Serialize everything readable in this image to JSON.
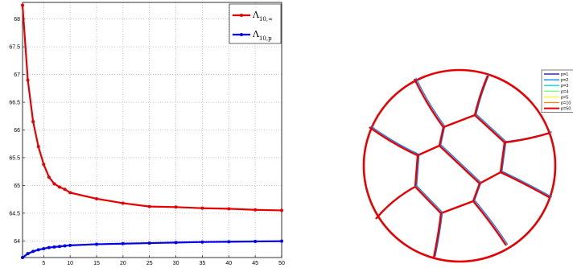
{
  "chart_data": [
    {
      "type": "line",
      "title": "",
      "xlabel": "",
      "ylabel": "",
      "xlim": [
        1,
        50
      ],
      "ylim": [
        63.7,
        68.3
      ],
      "grid": true,
      "legend_position": "top-right",
      "x_ticks": [
        "5",
        "10",
        "15",
        "20",
        "25",
        "30",
        "35",
        "40",
        "45",
        "50"
      ],
      "y_ticks": [
        "64",
        "64.5",
        "65",
        "65.5",
        "66",
        "66.5",
        "67",
        "67.5",
        "68"
      ],
      "series": [
        {
          "legend_base": "Λ",
          "legend_sub": "10,∞",
          "color": "#e60000",
          "x": [
            1,
            2,
            3,
            4,
            5,
            6,
            7,
            8,
            9,
            10,
            15,
            20,
            25,
            30,
            35,
            40,
            45,
            50
          ],
          "y": [
            68.25,
            66.9,
            66.15,
            65.7,
            65.38,
            65.15,
            65.03,
            64.97,
            64.93,
            64.87,
            64.76,
            64.68,
            64.62,
            64.61,
            64.59,
            64.58,
            64.56,
            64.55
          ]
        },
        {
          "legend_base": "Λ",
          "legend_sub": "10,p",
          "color": "#0000e6",
          "x": [
            1,
            2,
            3,
            4,
            5,
            6,
            7,
            8,
            9,
            10,
            15,
            20,
            25,
            30,
            35,
            40,
            45,
            50
          ],
          "y": [
            63.7,
            63.77,
            63.81,
            63.84,
            63.86,
            63.88,
            63.89,
            63.9,
            63.91,
            63.92,
            63.94,
            63.95,
            63.96,
            63.97,
            63.98,
            63.985,
            63.99,
            63.995
          ]
        }
      ]
    },
    {
      "type": "diagram",
      "title": "",
      "legend_position": "top-right",
      "legend": [
        {
          "label": "p=1",
          "color": "#0000c8"
        },
        {
          "label": "p=2",
          "color": "#0078ff"
        },
        {
          "label": "p=3",
          "color": "#00dcdc"
        },
        {
          "label": "p=4",
          "color": "#7fff7f"
        },
        {
          "label": "p=5",
          "color": "#ffff00"
        },
        {
          "label": "p=10",
          "color": "#ff8000"
        },
        {
          "label": "p=50",
          "color": "#e60000"
        }
      ]
    }
  ]
}
